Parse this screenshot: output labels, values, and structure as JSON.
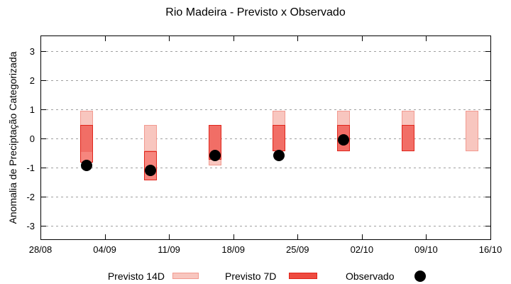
{
  "title": "Rio Madeira - Previsto x Observado",
  "axes": {
    "y_label": "Anomalia de Preciptação Categorizada",
    "y_ticks": [
      3,
      2,
      1,
      0,
      -1,
      -2,
      -3
    ],
    "y_range": [
      -3.5,
      3.5
    ],
    "x_tick_labels": [
      "28/08",
      "04/09",
      "11/09",
      "18/09",
      "25/09",
      "02/10",
      "09/10",
      "16/10"
    ],
    "x_range_days": [
      0,
      49
    ],
    "grid": "horizontal-dashed"
  },
  "legend": {
    "position": "bottom-center",
    "items": [
      {
        "label": "Previsto 14D",
        "marker": "box",
        "fill": "#f8c6bf",
        "border": "#f29a90"
      },
      {
        "label": "Previsto 7D",
        "marker": "box",
        "fill": "#ee4b40",
        "border": "#e0251b"
      },
      {
        "label": "Observado",
        "marker": "dot",
        "fill": "#000000"
      }
    ]
  },
  "colors": {
    "p14_fill": "#f8c6bf",
    "p14_border": "#f29a90",
    "p7_over_white": "#f6867e",
    "p7_over_p14": "#f16e66",
    "p7_border": "#e0251b",
    "observed": "#000000",
    "grid": "#a0a0a0",
    "frame": "#000000"
  },
  "chart_data": {
    "type": "bar",
    "subtype": "forecast-range-bars-with-observed-dots",
    "title": "Rio Madeira - Previsto x Observado",
    "xlabel": "",
    "ylabel": "Anomalia de Preciptação Categorizada",
    "ylim": [
      -3.5,
      3.5
    ],
    "x_axis_ticks": [
      "28/08",
      "04/09",
      "11/09",
      "18/09",
      "25/09",
      "02/10",
      "09/10",
      "16/10"
    ],
    "categories": [
      "02/09",
      "09/09",
      "16/09",
      "23/09",
      "30/09",
      "07/10",
      "14/10"
    ],
    "x_days_from_start": [
      5,
      12,
      19,
      26,
      33,
      40,
      47
    ],
    "series": [
      {
        "name": "Previsto 14D",
        "kind": "range",
        "ranges": [
          [
            0.95,
            -0.45
          ],
          [
            0.45,
            -0.45
          ],
          [
            0.45,
            -0.95
          ],
          [
            0.95,
            -0.45
          ],
          [
            0.95,
            -0.45
          ],
          [
            0.95,
            -0.45
          ],
          [
            0.95,
            -0.45
          ]
        ]
      },
      {
        "name": "Previsto 7D",
        "kind": "range",
        "ranges": [
          [
            0.45,
            -0.85
          ],
          [
            -0.45,
            -1.45
          ],
          [
            0.45,
            -0.75
          ],
          [
            0.45,
            -0.45
          ],
          [
            0.45,
            -0.45
          ],
          [
            0.45,
            -0.45
          ],
          null
        ]
      },
      {
        "name": "Observado",
        "kind": "point",
        "values": [
          -0.95,
          -1.1,
          -0.6,
          -0.6,
          -0.05,
          null,
          null
        ]
      }
    ]
  }
}
